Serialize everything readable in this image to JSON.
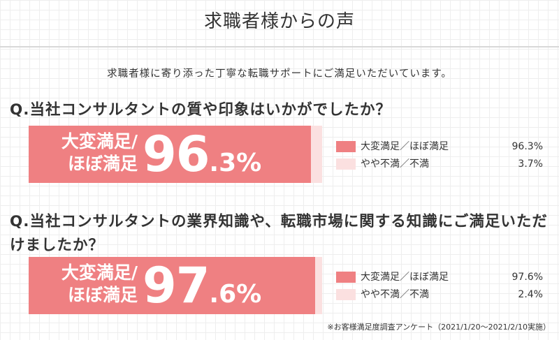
{
  "header": {
    "title": "求職者様からの声",
    "subtitle": "求職者様に寄り添った丁寧な転職サポートにご満足いただいています。"
  },
  "colors": {
    "satisfied": "#ef8082",
    "unsatisfied": "#fbe0e0"
  },
  "chart_data": [
    {
      "type": "bar",
      "title": "Q.当社コンサルタントの質や印象はいかがでしたか？",
      "bar_label_lines": [
        "大変満足/",
        "ほぼ満足"
      ],
      "bar_value_int": "96",
      "bar_value_dec": ".3%",
      "categories": [
        "大変満足／ほぼ満足",
        "やや不満／不満"
      ],
      "values": [
        96.3,
        3.7
      ],
      "value_labels": [
        "96.3%",
        "3.7%"
      ],
      "unit": "%",
      "ylim": [
        0,
        100
      ],
      "legend": "right"
    },
    {
      "type": "bar",
      "title": "Q.当社コンサルタントの業界知識や、転職市場に関する知識にご満足いただけましたか？",
      "bar_label_lines": [
        "大変満足/",
        "ほぼ満足"
      ],
      "bar_value_int": "97",
      "bar_value_dec": ".6%",
      "categories": [
        "大変満足／ほぼ満足",
        "やや不満／不満"
      ],
      "values": [
        97.6,
        2.4
      ],
      "value_labels": [
        "97.6%",
        "2.4%"
      ],
      "unit": "%",
      "ylim": [
        0,
        100
      ],
      "legend": "right"
    }
  ],
  "footnote": "※お客様満足度調査アンケート（2021/1/20〜2021/2/10実施）"
}
